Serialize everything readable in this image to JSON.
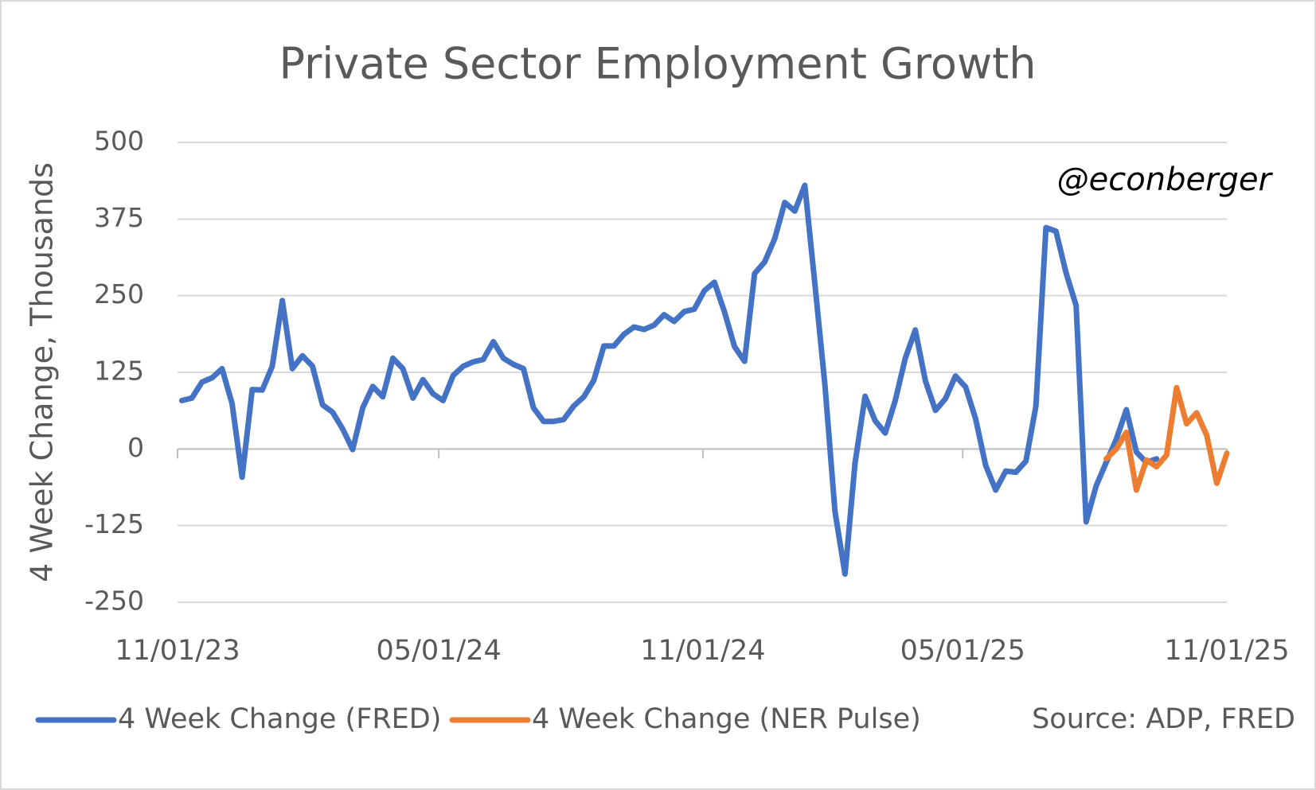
{
  "chart_data": {
    "type": "line",
    "title": "Private Sector Employment Growth",
    "y_label": "4 Week Change, Thousands",
    "annotation": "@econberger",
    "source": "Source: ADP, FRED",
    "xlim": [
      "2023-11-01",
      "2025-11-01"
    ],
    "xticks": [
      {
        "value": "2023-11-01",
        "label": "11/01/23"
      },
      {
        "value": "2024-05-01",
        "label": "05/01/24"
      },
      {
        "value": "2024-11-01",
        "label": "11/01/24"
      },
      {
        "value": "2025-05-01",
        "label": "05/01/25"
      },
      {
        "value": "2025-11-01",
        "label": "11/01/25"
      }
    ],
    "ylim": [
      -250,
      500
    ],
    "yticks": [
      500,
      375,
      250,
      125,
      0,
      -125,
      -250
    ],
    "grid": true,
    "series": [
      {
        "name": "4 Week Change (FRED)",
        "color": "#4472c4",
        "x": [
          "2023-11-04",
          "2023-11-11",
          "2023-11-18",
          "2023-11-25",
          "2023-12-02",
          "2023-12-09",
          "2023-12-16",
          "2023-12-23",
          "2023-12-30",
          "2024-01-06",
          "2024-01-13",
          "2024-01-20",
          "2024-01-27",
          "2024-02-03",
          "2024-02-10",
          "2024-02-17",
          "2024-02-24",
          "2024-03-02",
          "2024-03-09",
          "2024-03-16",
          "2024-03-23",
          "2024-03-30",
          "2024-04-06",
          "2024-04-13",
          "2024-04-20",
          "2024-04-27",
          "2024-05-04",
          "2024-05-11",
          "2024-05-18",
          "2024-05-25",
          "2024-06-01",
          "2024-06-08",
          "2024-06-15",
          "2024-06-22",
          "2024-06-29",
          "2024-07-06",
          "2024-07-13",
          "2024-07-20",
          "2024-07-27",
          "2024-08-03",
          "2024-08-10",
          "2024-08-17",
          "2024-08-24",
          "2024-08-31",
          "2024-09-07",
          "2024-09-14",
          "2024-09-21",
          "2024-09-28",
          "2024-10-05",
          "2024-10-12",
          "2024-10-19",
          "2024-10-26",
          "2024-11-02",
          "2024-11-09",
          "2024-11-16",
          "2024-11-23",
          "2024-11-30",
          "2024-12-07",
          "2024-12-14",
          "2024-12-21",
          "2024-12-28",
          "2025-01-04",
          "2025-01-11",
          "2025-01-18",
          "2025-01-25",
          "2025-02-01",
          "2025-02-08",
          "2025-02-15",
          "2025-02-22",
          "2025-03-01",
          "2025-03-08",
          "2025-03-15",
          "2025-03-22",
          "2025-03-29",
          "2025-04-05",
          "2025-04-12",
          "2025-04-19",
          "2025-04-26",
          "2025-05-03",
          "2025-05-10",
          "2025-05-17",
          "2025-05-24",
          "2025-05-31",
          "2025-06-07",
          "2025-06-14",
          "2025-06-21",
          "2025-06-28",
          "2025-07-05",
          "2025-07-12",
          "2025-07-19",
          "2025-07-26",
          "2025-08-02",
          "2025-08-09",
          "2025-08-16",
          "2025-08-23",
          "2025-08-30",
          "2025-09-06",
          "2025-09-13"
        ],
        "values": [
          79,
          83,
          109,
          116,
          131,
          74,
          -46,
          97,
          96,
          135,
          242,
          131,
          152,
          135,
          72,
          60,
          33,
          -1,
          67,
          102,
          85,
          148,
          131,
          83,
          113,
          90,
          79,
          120,
          135,
          142,
          146,
          175,
          148,
          138,
          131,
          67,
          45,
          45,
          48,
          70,
          85,
          112,
          168,
          168,
          187,
          199,
          195,
          202,
          219,
          208,
          224,
          228,
          258,
          272,
          224,
          167,
          143,
          286,
          305,
          343,
          402,
          388,
          430,
          270,
          104,
          -102,
          -204,
          -23,
          86,
          46,
          26,
          79,
          148,
          194,
          111,
          63,
          82,
          119,
          101,
          49,
          -27,
          -67,
          -36,
          -38,
          -20,
          70,
          361,
          355,
          287,
          234,
          -119,
          -60,
          -22,
          16,
          64,
          -5,
          -22,
          -16
        ]
      },
      {
        "name": "4 Week Change (NER Pulse)",
        "color": "#ed7d31",
        "x": [
          "2025-08-09",
          "2025-08-16",
          "2025-08-23",
          "2025-08-30",
          "2025-09-06",
          "2025-09-13",
          "2025-09-20",
          "2025-09-27",
          "2025-10-04",
          "2025-10-11",
          "2025-10-18",
          "2025-10-25",
          "2025-11-01"
        ],
        "values": [
          -16,
          0,
          27,
          -67,
          -18,
          -29,
          -10,
          100,
          41,
          59,
          22,
          -56,
          -7
        ]
      }
    ]
  }
}
